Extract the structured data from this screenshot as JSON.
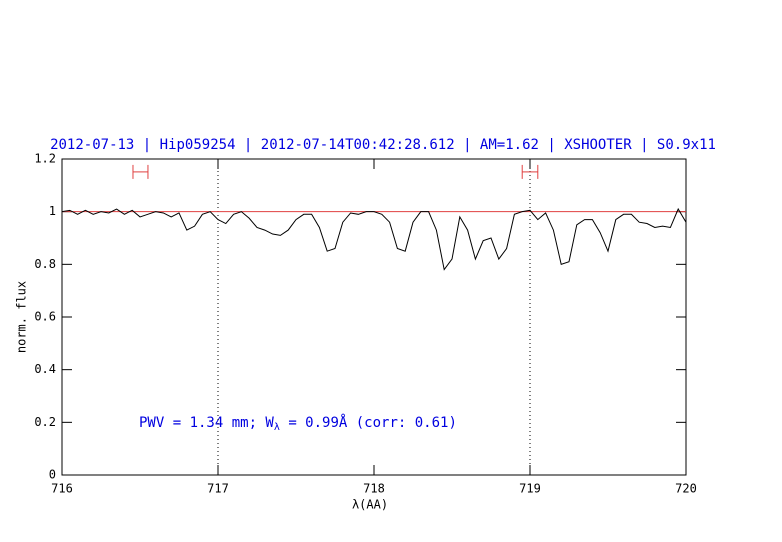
{
  "chart_data": {
    "type": "line",
    "title": "2012-07-13 | Hip059254 | 2012-07-14T00:42:28.612 | AM=1.62 | XSHOOTER | S0.9x11",
    "x_label": "λ(AA)",
    "y_label": "norm. flux",
    "annotation": {
      "before": "PWV = 1.34 mm; W",
      "subscript": "λ",
      "after": " = 0.99Å (corr: 0.61)"
    },
    "xlim": [
      716,
      720
    ],
    "ylim": [
      0,
      1.2
    ],
    "xticks": [
      716,
      717,
      718,
      719,
      720
    ],
    "yticks": [
      0,
      0.2,
      0.4,
      0.6,
      0.8,
      1,
      1.2
    ],
    "color": "#000000",
    "title_color": "#0000e0",
    "vlines": [
      717,
      719
    ],
    "hline": 1,
    "reference_color": "#e04040",
    "intervals": [
      {
        "x": [
          716.455,
          716.551
        ],
        "y": 1.151
      },
      {
        "x": [
          718.95,
          719.05
        ],
        "y": 1.151
      }
    ],
    "x": [
      716,
      716.05,
      716.1,
      716.15,
      716.2,
      716.25,
      716.3,
      716.35,
      716.4,
      716.45,
      716.5,
      716.55,
      716.6,
      716.65,
      716.7,
      716.75,
      716.8,
      716.85,
      716.9,
      716.95,
      717,
      717.05,
      717.1,
      717.15,
      717.2,
      717.25,
      717.3,
      717.35,
      717.4,
      717.45,
      717.5,
      717.55,
      717.6,
      717.65,
      717.7,
      717.75,
      717.8,
      717.85,
      717.9,
      717.95,
      718,
      718.05,
      718.1,
      718.15,
      718.2,
      718.25,
      718.3,
      718.35,
      718.4,
      718.45,
      718.5,
      718.55,
      718.6,
      718.65,
      718.7,
      718.75,
      718.8,
      718.85,
      718.9,
      718.95,
      719,
      719.05,
      719.1,
      719.15,
      719.2,
      719.25,
      719.3,
      719.35,
      719.4,
      719.45,
      719.5,
      719.55,
      719.6,
      719.65,
      719.7,
      719.75,
      719.8,
      719.85,
      719.9,
      719.95,
      720
    ],
    "values": [
      1.0,
      1.005,
      0.99,
      1.005,
      0.99,
      1.0,
      0.995,
      1.01,
      0.99,
      1.005,
      0.98,
      0.99,
      1.0,
      0.995,
      0.98,
      0.995,
      0.93,
      0.945,
      0.99,
      1.0,
      0.97,
      0.955,
      0.99,
      1.0,
      0.975,
      0.94,
      0.93,
      0.915,
      0.91,
      0.93,
      0.97,
      0.99,
      0.99,
      0.94,
      0.85,
      0.86,
      0.96,
      0.995,
      0.99,
      1.0,
      1.0,
      0.99,
      0.96,
      0.86,
      0.85,
      0.96,
      1.0,
      1.0,
      0.93,
      0.78,
      0.82,
      0.98,
      0.93,
      0.82,
      0.89,
      0.9,
      0.82,
      0.86,
      0.99,
      1.0,
      1.005,
      0.97,
      0.995,
      0.93,
      0.8,
      0.81,
      0.95,
      0.97,
      0.97,
      0.92,
      0.85,
      0.97,
      0.99,
      0.99,
      0.96,
      0.955,
      0.94,
      0.945,
      0.94,
      1.01,
      0.96
    ]
  }
}
